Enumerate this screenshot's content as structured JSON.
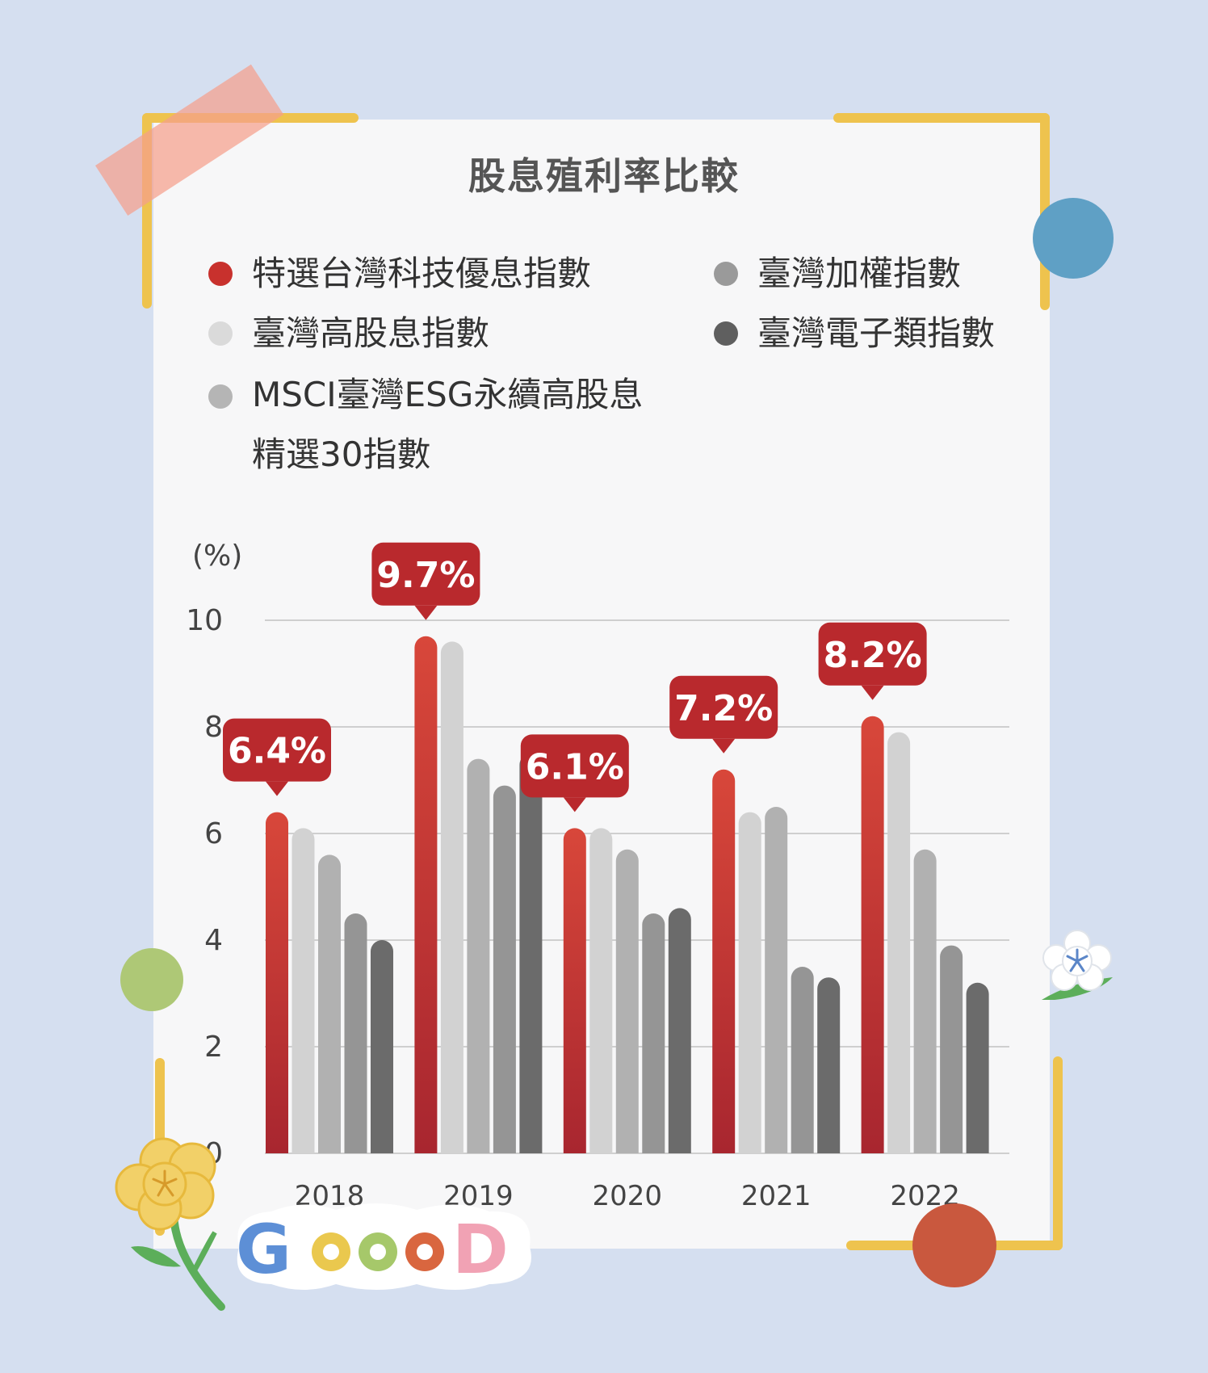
{
  "chart_data": {
    "type": "bar",
    "title": "股息殖利率比較",
    "ylabel": "(%)",
    "ylim": [
      0,
      10
    ],
    "yticks": [
      "0",
      "2",
      "4",
      "6",
      "8",
      "10"
    ],
    "categories": [
      "2018",
      "2019",
      "2020",
      "2021",
      "2022"
    ],
    "series": [
      {
        "name": "特選台灣科技優息指數",
        "color": "#c8312d",
        "values": [
          6.4,
          9.7,
          6.1,
          7.2,
          8.2
        ]
      },
      {
        "name": "臺灣高股息指數",
        "color": "#d2d2d2",
        "values": [
          6.1,
          9.6,
          6.1,
          6.4,
          7.9
        ]
      },
      {
        "name": "MSCI臺灣ESG永續高股息精選30指數",
        "color": "#b1b1b1",
        "values": [
          5.6,
          7.4,
          5.7,
          6.5,
          5.7
        ]
      },
      {
        "name": "臺灣加權指數",
        "color": "#959595",
        "values": [
          4.5,
          6.9,
          4.5,
          3.5,
          3.9
        ]
      },
      {
        "name": "臺灣電子類指數",
        "color": "#6b6b6b",
        "values": [
          4.0,
          7.5,
          4.6,
          3.3,
          3.2
        ]
      }
    ],
    "callouts": [
      "6.4%",
      "9.7%",
      "6.1%",
      "7.2%",
      "8.2%"
    ],
    "grid": true
  },
  "legend": {
    "items": [
      {
        "label": "特選台灣科技優息指數",
        "color": "#c8312d"
      },
      {
        "label": "臺灣加權指數",
        "color": "#9a9a9a"
      },
      {
        "label": "臺灣高股息指數",
        "color": "#dadada"
      },
      {
        "label": "臺灣電子類指數",
        "color": "#5f5f5f"
      },
      {
        "label_line1": "MSCI臺灣ESG永續高股息",
        "label_line2": "精選30指數",
        "color": "#b5b5b5"
      }
    ]
  },
  "decor": {
    "sticker_text": "GOOOD",
    "sticker_colors": [
      "#5d8fd6",
      "#eac84e",
      "#a6c86a",
      "#d9663f",
      "#f1a2b4"
    ]
  }
}
